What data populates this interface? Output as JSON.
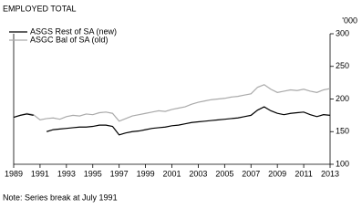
{
  "chart_data": {
    "type": "line",
    "title": "EMPLOYED TOTAL",
    "y_unit": "'000",
    "note": "Note: Series break at July 1991",
    "x": [
      1989,
      1989.5,
      1990,
      1990.5,
      1991,
      1991.5,
      1992,
      1992.5,
      1993,
      1993.5,
      1994,
      1994.5,
      1995,
      1995.5,
      1996,
      1996.5,
      1997,
      1997.5,
      1998,
      1998.5,
      1999,
      1999.5,
      2000,
      2000.5,
      2001,
      2001.5,
      2002,
      2002.5,
      2003,
      2003.5,
      2004,
      2004.5,
      2005,
      2005.5,
      2006,
      2006.5,
      2007,
      2007.5,
      2008,
      2008.5,
      2009,
      2009.5,
      2010,
      2010.5,
      2011,
      2011.5,
      2012,
      2012.5,
      2013
    ],
    "series": [
      {
        "name": "ASGS Rest of SA (new)",
        "color": "#000000",
        "values": [
          172,
          175,
          177,
          175,
          null,
          150,
          153,
          154,
          155,
          156,
          157,
          157,
          158,
          160,
          160,
          158,
          145,
          148,
          150,
          151,
          153,
          155,
          156,
          157,
          159,
          160,
          162,
          164,
          165,
          166,
          167,
          168,
          169,
          170,
          171,
          173,
          175,
          183,
          188,
          182,
          178,
          176,
          178,
          179,
          180,
          176,
          173,
          176,
          175
        ]
      },
      {
        "name": "ASGC Bal of SA (old)",
        "color": "#aaaaaa",
        "values": [
          172,
          175,
          178,
          176,
          168,
          170,
          171,
          169,
          173,
          175,
          174,
          177,
          176,
          179,
          180,
          178,
          166,
          170,
          174,
          176,
          178,
          180,
          182,
          181,
          184,
          186,
          188,
          192,
          195,
          197,
          199,
          200,
          201,
          203,
          204,
          206,
          208,
          218,
          222,
          215,
          210,
          212,
          214,
          213,
          215,
          212,
          210,
          214,
          216
        ]
      }
    ],
    "xlim": [
      1989,
      2013
    ],
    "xticks": [
      1989,
      1991,
      1993,
      1995,
      1997,
      1999,
      2001,
      2003,
      2005,
      2007,
      2009,
      2011,
      2013
    ],
    "ylim": [
      100,
      300
    ],
    "yticks": [
      100,
      150,
      200,
      250,
      300
    ],
    "legend": "upper left"
  }
}
